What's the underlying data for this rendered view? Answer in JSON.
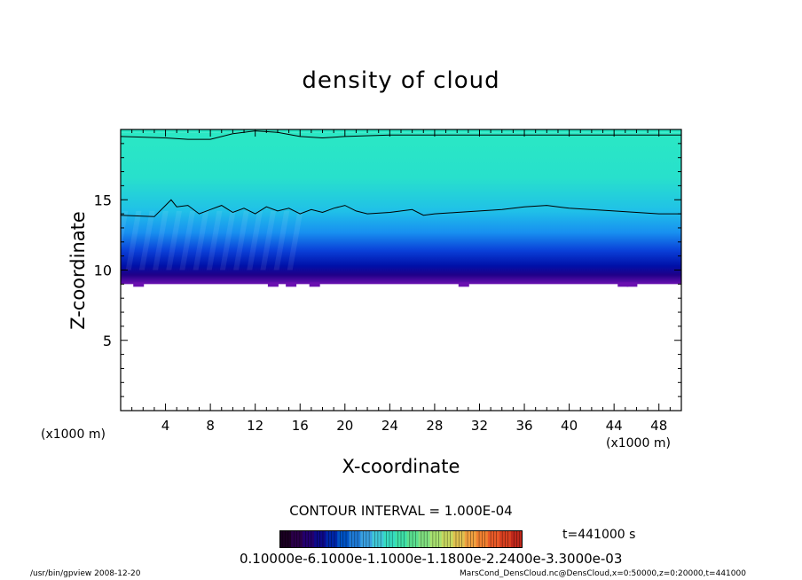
{
  "chart_data": {
    "type": "heatmap",
    "title": "density of cloud",
    "xlabel": "X-coordinate",
    "ylabel": "Z-coordinate",
    "x_unit": "(x1000 m)",
    "xlim": [
      0,
      50
    ],
    "ylim": [
      0,
      20
    ],
    "x_ticks": [
      "4",
      "8",
      "12",
      "16",
      "20",
      "24",
      "28",
      "32",
      "36",
      "40",
      "44",
      "48"
    ],
    "y_ticks": [
      "5",
      "10",
      "15"
    ],
    "cloud_base_z": 9.0,
    "cloud_top_z": 19.8,
    "contour_levels_z_profiles": [
      {
        "level": "1",
        "x": [
          0,
          3,
          4,
          4.5,
          5,
          6,
          7,
          8,
          9,
          10,
          11,
          12,
          13,
          14,
          15,
          16,
          17,
          18,
          19,
          20,
          21,
          22,
          24,
          26,
          27,
          28,
          30,
          32,
          34,
          36,
          38,
          40,
          44,
          48,
          50
        ],
        "z": [
          13.9,
          13.8,
          14.6,
          15.0,
          14.5,
          14.6,
          14.0,
          14.3,
          14.6,
          14.1,
          14.4,
          14.0,
          14.5,
          14.2,
          14.4,
          14.0,
          14.3,
          14.1,
          14.4,
          14.6,
          14.2,
          14.0,
          14.1,
          14.3,
          13.9,
          14.0,
          14.1,
          14.2,
          14.3,
          14.5,
          14.6,
          14.4,
          14.2,
          14.0,
          14.0
        ]
      },
      {
        "level": "2",
        "x": [
          0,
          4,
          6,
          8,
          10,
          12,
          14,
          16,
          18,
          20,
          24,
          28,
          32,
          36,
          40,
          44,
          48,
          50
        ],
        "z": [
          19.5,
          19.4,
          19.3,
          19.3,
          19.7,
          19.9,
          19.8,
          19.5,
          19.4,
          19.5,
          19.6,
          19.6,
          19.6,
          19.6,
          19.6,
          19.6,
          19.6,
          19.6
        ]
      }
    ],
    "colorbar": {
      "tick_labels_text": "0.10000e-6.1000e-1.1000e-1.1800e-2.2400e-3.3000e-03",
      "colors": [
        "#1a0022",
        "#2a0048",
        "#23006e",
        "#0d0a8a",
        "#0026a8",
        "#0052c4",
        "#1f7ad6",
        "#3aa0e0",
        "#40c8d8",
        "#36dcc0",
        "#3ee0a8",
        "#5ae090",
        "#80e080",
        "#a8e070",
        "#c8d860",
        "#e0c050",
        "#f0a040",
        "#f08030",
        "#e85a28",
        "#d84020",
        "#c0281c"
      ]
    },
    "contour_interval": "CONTOUR INTERVAL = 1.000E-04",
    "time": "t=441000 s"
  },
  "footer": {
    "left": "/usr/bin/gpview  2008-12-20",
    "right": "MarsCond_DensCloud.nc@DensCloud,x=0:50000,z=0:20000,t=441000"
  },
  "colors": {
    "cloud_top": "#2ee8c0",
    "cloud_mid": "#1faee8",
    "cloud_dense": "#0010a0",
    "cloud_base": "#5a10a8"
  }
}
